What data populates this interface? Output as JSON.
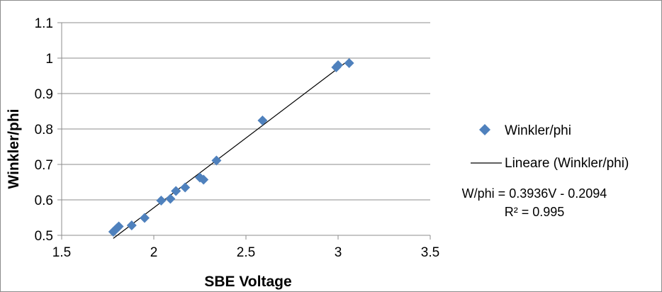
{
  "chart_data": {
    "type": "scatter",
    "title": "",
    "xlabel": "SBE Voltage",
    "ylabel": "Winkler/phi",
    "xlim": [
      1.5,
      3.5
    ],
    "ylim": [
      0.5,
      1.1
    ],
    "x_ticks": [
      "1.5",
      "2",
      "2.5",
      "3",
      "3.5"
    ],
    "y_ticks": [
      "0.5",
      "0.6",
      "0.7",
      "0.8",
      "0.9",
      "1",
      "1.1"
    ],
    "x_tick_values": [
      1.5,
      2,
      2.5,
      3,
      3.5
    ],
    "y_tick_values": [
      0.5,
      0.6,
      0.7,
      0.8,
      0.9,
      1.0,
      1.1
    ],
    "grid": "horizontal",
    "legend_position": "right",
    "series": [
      {
        "name": "Winkler/phi",
        "color": "#4f81bd",
        "marker": "diamond",
        "points": [
          [
            1.78,
            0.51
          ],
          [
            1.79,
            0.515
          ],
          [
            1.8,
            0.52
          ],
          [
            1.81,
            0.525
          ],
          [
            1.88,
            0.528
          ],
          [
            1.95,
            0.549
          ],
          [
            2.04,
            0.598
          ],
          [
            2.09,
            0.603
          ],
          [
            2.12,
            0.625
          ],
          [
            2.17,
            0.635
          ],
          [
            2.25,
            0.663
          ],
          [
            2.27,
            0.657
          ],
          [
            2.34,
            0.711
          ],
          [
            2.59,
            0.824
          ],
          [
            2.99,
            0.974
          ],
          [
            3.0,
            0.98
          ],
          [
            3.06,
            0.986
          ]
        ]
      }
    ],
    "trendline": {
      "name": "Lineare (Winkler/phi)",
      "color": "#000000",
      "slope": 0.3936,
      "intercept": -0.2094,
      "x_range": [
        1.78,
        3.06
      ]
    },
    "legend": {
      "series_label": "Winkler/phi",
      "trend_label": "Lineare (Winkler/phi)"
    },
    "annotations": {
      "equation": "W/phi = 0.3936V - 0.2094",
      "r_squared": "R² = 0.995"
    }
  }
}
